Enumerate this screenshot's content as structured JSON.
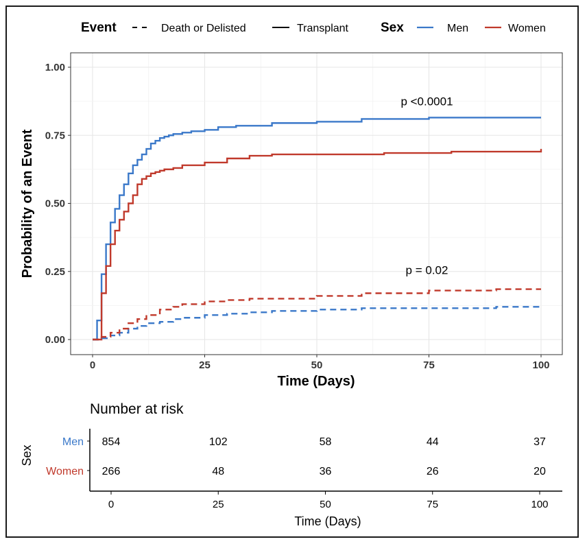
{
  "chart_data": {
    "type": "line",
    "subtype": "cumulative incidence (step)",
    "title": "",
    "xlabel": "Time (Days)",
    "ylabel": "Probability of an Event",
    "xlim": [
      0,
      100
    ],
    "ylim": [
      0,
      1
    ],
    "x_ticks": [
      0,
      25,
      50,
      75,
      100
    ],
    "x_tick_labels": [
      "0",
      "25",
      "50",
      "75",
      "100"
    ],
    "y_ticks": [
      0,
      0.25,
      0.5,
      0.75,
      1.0
    ],
    "y_tick_labels": [
      "0.00",
      "0.25",
      "0.50",
      "0.75",
      "1.00"
    ],
    "grid": true,
    "legend_position": "top",
    "legend": {
      "event_title": "Event",
      "event_entries": [
        {
          "label": "Death or Delisted",
          "linestyle": "dashed"
        },
        {
          "label": "Transplant",
          "linestyle": "solid"
        }
      ],
      "sex_title": "Sex",
      "sex_entries": [
        {
          "label": "Men",
          "color": "#3a78c9"
        },
        {
          "label": "Women",
          "color": "#c0392b"
        }
      ]
    },
    "annotations": [
      {
        "text": "p <0.0001",
        "x": 75,
        "y": 0.86
      },
      {
        "text": "p = 0.02",
        "x": 75,
        "y": 0.24
      }
    ],
    "series": [
      {
        "group": "Men",
        "event": "Transplant",
        "color": "#3a78c9",
        "linestyle": "solid",
        "x": [
          0,
          1,
          2,
          3,
          4,
          5,
          6,
          7,
          8,
          9,
          10,
          11,
          12,
          13,
          14,
          15,
          16,
          17,
          18,
          20,
          22,
          25,
          28,
          32,
          40,
          50,
          60,
          75,
          100
        ],
        "y": [
          0,
          0.07,
          0.24,
          0.35,
          0.43,
          0.48,
          0.53,
          0.57,
          0.61,
          0.64,
          0.66,
          0.68,
          0.7,
          0.72,
          0.73,
          0.74,
          0.745,
          0.75,
          0.755,
          0.76,
          0.765,
          0.77,
          0.78,
          0.785,
          0.795,
          0.8,
          0.81,
          0.815,
          0.815
        ]
      },
      {
        "group": "Women",
        "event": "Transplant",
        "color": "#c0392b",
        "linestyle": "solid",
        "x": [
          0,
          2,
          3,
          4,
          5,
          6,
          7,
          8,
          9,
          10,
          11,
          12,
          13,
          14,
          15,
          16,
          18,
          20,
          25,
          30,
          35,
          40,
          50,
          65,
          80,
          100
        ],
        "y": [
          0,
          0.17,
          0.27,
          0.35,
          0.4,
          0.44,
          0.47,
          0.5,
          0.53,
          0.57,
          0.59,
          0.6,
          0.61,
          0.615,
          0.62,
          0.625,
          0.63,
          0.64,
          0.65,
          0.665,
          0.675,
          0.68,
          0.68,
          0.685,
          0.69,
          0.7
        ]
      },
      {
        "group": "Men",
        "event": "Death or Delisted",
        "color": "#3a78c9",
        "linestyle": "dashed",
        "x": [
          0,
          2,
          4,
          6,
          8,
          10,
          12,
          15,
          18,
          20,
          25,
          30,
          35,
          40,
          50,
          60,
          75,
          90,
          100
        ],
        "y": [
          0,
          0.005,
          0.015,
          0.025,
          0.04,
          0.05,
          0.06,
          0.065,
          0.075,
          0.08,
          0.09,
          0.095,
          0.1,
          0.105,
          0.11,
          0.115,
          0.115,
          0.12,
          0.125
        ]
      },
      {
        "group": "Women",
        "event": "Death or Delisted",
        "color": "#c0392b",
        "linestyle": "dashed",
        "x": [
          0,
          2,
          4,
          6,
          8,
          10,
          12,
          15,
          18,
          20,
          25,
          30,
          35,
          50,
          60,
          75,
          90,
          100
        ],
        "y": [
          0,
          0.01,
          0.025,
          0.04,
          0.06,
          0.075,
          0.09,
          0.11,
          0.12,
          0.13,
          0.14,
          0.145,
          0.15,
          0.16,
          0.17,
          0.18,
          0.185,
          0.185
        ]
      }
    ],
    "risk_table": {
      "title": "Number at risk",
      "y_axis_title": "Sex",
      "x_axis_title": "Time (Days)",
      "x_ticks": [
        0,
        25,
        50,
        75,
        100
      ],
      "x_tick_labels": [
        "0",
        "25",
        "50",
        "75",
        "100"
      ],
      "rows": [
        {
          "label": "Men",
          "color": "#3a78c9",
          "values": [
            "854",
            "102",
            "58",
            "44",
            "37"
          ]
        },
        {
          "label": "Women",
          "color": "#c0392b",
          "values": [
            "266",
            "48",
            "36",
            "26",
            "20"
          ]
        }
      ]
    }
  }
}
